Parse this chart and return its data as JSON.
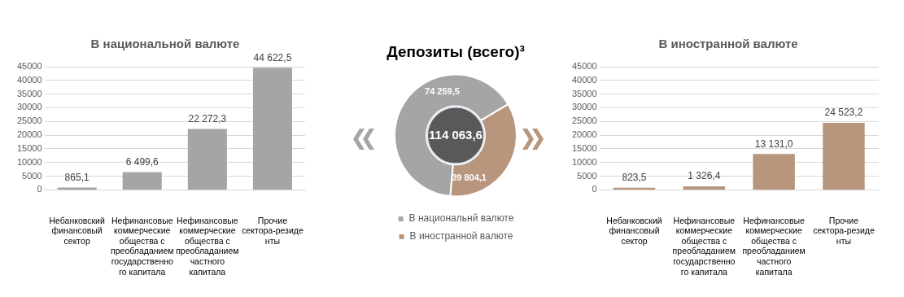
{
  "chart_data": [
    {
      "type": "bar",
      "title": "В национальной валюте",
      "categories": [
        "Небанковский финансовый сектор",
        "Нефинансовые коммерческие общества с преобладанием государственного капитала",
        "Нефинансовые коммерческие общества с преобладанием частного капитала",
        "Прочие сектора-резиденты"
      ],
      "values": [
        865.1,
        6499.6,
        22272.3,
        44622.5
      ],
      "value_labels": [
        "865,1",
        "6 499,6",
        "22 272,3",
        "44 622,5"
      ],
      "color": "#a5a5a5",
      "ylim": [
        0,
        45000
      ],
      "yticks": [
        0,
        5000,
        10000,
        15000,
        20000,
        25000,
        30000,
        35000,
        40000,
        45000
      ],
      "grid": "y"
    },
    {
      "type": "donut",
      "title": "Депозиты (всего)³",
      "categories": [
        "В национальнй валюте",
        "В иностранной валюте"
      ],
      "values": [
        74259.5,
        39804.1
      ],
      "value_labels": [
        "74 259,5",
        "39 804,1"
      ],
      "colors": [
        "#a5a5a5",
        "#b8957d"
      ],
      "annotations": [
        "114 063,6"
      ],
      "legend": "bottom"
    },
    {
      "type": "bar",
      "title": "В иностранной валюте",
      "categories": [
        "Небанковский финансовый сектор",
        "Нефинансовые коммерческие общества с преобладанием государственного капитала",
        "Нефинансовые коммерческие общества с преобладанием частного капитала",
        "Прочие сектора-резиденты"
      ],
      "values": [
        823.5,
        1326.4,
        13131.0,
        24523.2
      ],
      "value_labels": [
        "823,5",
        "1 326,4",
        "13 131,0",
        "24 523,2"
      ],
      "color": "#b8957d",
      "ylim": [
        0,
        45000
      ],
      "yticks": [
        0,
        5000,
        10000,
        15000,
        20000,
        25000,
        30000,
        35000,
        40000,
        45000
      ],
      "grid": "y"
    }
  ]
}
